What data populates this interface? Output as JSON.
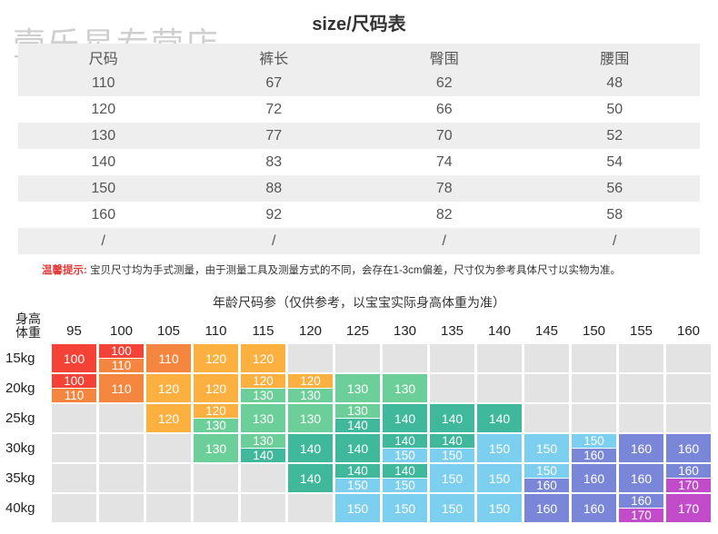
{
  "watermark": "壹乐星专营店",
  "title": "size/尺码表",
  "size_table": {
    "headers": [
      "尺码",
      "裤长",
      "臀围",
      "腰围"
    ],
    "rows": [
      [
        "110",
        "67",
        "62",
        "48"
      ],
      [
        "120",
        "72",
        "66",
        "50"
      ],
      [
        "130",
        "77",
        "70",
        "52"
      ],
      [
        "140",
        "83",
        "74",
        "54"
      ],
      [
        "150",
        "88",
        "78",
        "56"
      ],
      [
        "160",
        "92",
        "82",
        "58"
      ],
      [
        "/",
        "/",
        "/",
        "/"
      ]
    ]
  },
  "note": {
    "label": "温馨提示:",
    "text": "宝贝尺寸均为手式测量，由于测量工具及测量方式的不同，会存在1-3cm偏差，尺寸仅为参考具体尺寸以实物为准。"
  },
  "age_chart": {
    "title": "年龄尺码参（仅供参考，以宝宝实际身高体重为准）",
    "corner_top": "身高",
    "corner_bottom": "体重",
    "heights": [
      "95",
      "100",
      "105",
      "110",
      "115",
      "120",
      "125",
      "130",
      "135",
      "140",
      "145",
      "150",
      "155",
      "160"
    ],
    "weights": [
      "15kg",
      "20kg",
      "25kg",
      "30kg",
      "35kg",
      "40kg"
    ],
    "colors": {
      "100": "#f44336",
      "110": "#f58640",
      "120": "#fbb040",
      "130": "#6cce98",
      "140": "#3fb89c",
      "150": "#7ccfee",
      "160": "#7a86d8",
      "170": "#c14bc9",
      "empty": "#e3e3e3"
    },
    "grid": [
      [
        [
          "100"
        ],
        [
          "100",
          "110"
        ],
        [
          "110"
        ],
        [
          "120"
        ],
        [
          "120"
        ],
        [],
        [],
        [],
        [],
        [],
        [],
        [],
        [],
        []
      ],
      [
        [
          "100",
          "110"
        ],
        [
          "110"
        ],
        [
          "120"
        ],
        [
          "120"
        ],
        [
          "120",
          "130"
        ],
        [
          "120",
          "130"
        ],
        [
          "130"
        ],
        [
          "130"
        ],
        [],
        [],
        [],
        [],
        [],
        []
      ],
      [
        [],
        [],
        [
          "120"
        ],
        [
          "120",
          "130"
        ],
        [
          "130"
        ],
        [
          "130"
        ],
        [
          "130",
          "140"
        ],
        [
          "140"
        ],
        [
          "140"
        ],
        [
          "140"
        ],
        [],
        [],
        [],
        []
      ],
      [
        [],
        [],
        [],
        [
          "130"
        ],
        [
          "130",
          "140"
        ],
        [
          "140"
        ],
        [
          "140"
        ],
        [
          "140",
          "150"
        ],
        [
          "140",
          "150"
        ],
        [
          "150"
        ],
        [
          "150"
        ],
        [
          "150",
          "160"
        ],
        [
          "160"
        ],
        [
          "160"
        ]
      ],
      [
        [],
        [],
        [],
        [],
        [],
        [
          "140"
        ],
        [
          "140",
          "150"
        ],
        [
          "140",
          "150"
        ],
        [
          "150"
        ],
        [
          "150"
        ],
        [
          "150",
          "160"
        ],
        [
          "160"
        ],
        [
          "160"
        ],
        [
          "160",
          "170"
        ]
      ],
      [
        [],
        [],
        [],
        [],
        [],
        [],
        [
          "150"
        ],
        [
          "150"
        ],
        [
          "150"
        ],
        [
          "150"
        ],
        [
          "160"
        ],
        [
          "160"
        ],
        [
          "160",
          "170"
        ],
        [
          "170"
        ]
      ]
    ]
  }
}
